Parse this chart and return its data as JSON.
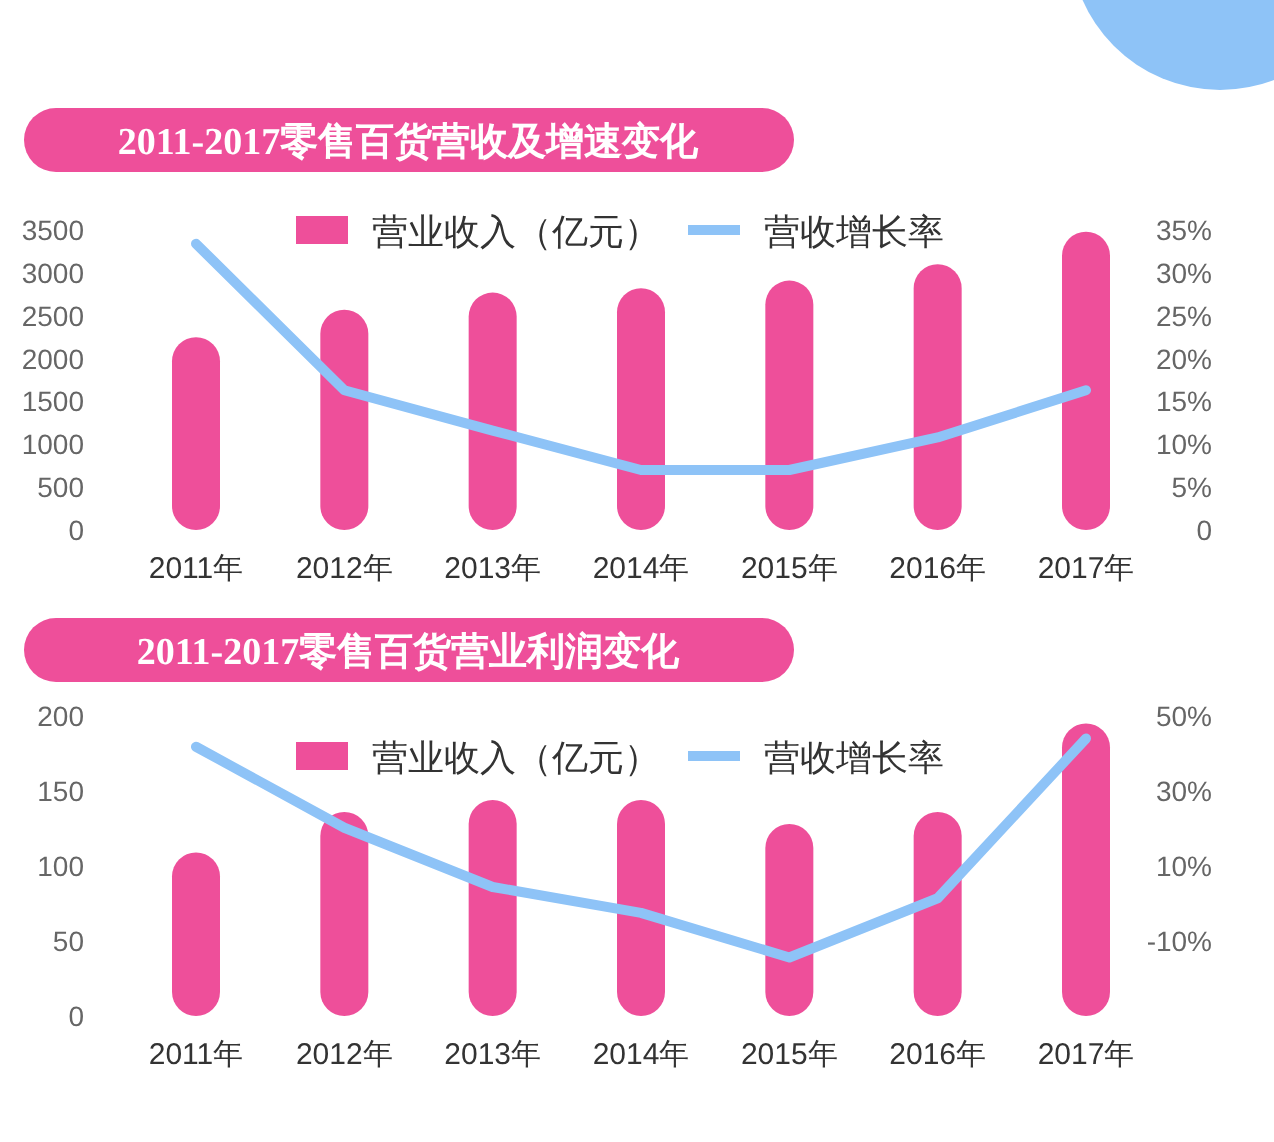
{
  "chart_data": [
    {
      "type": "bar",
      "title": "2011-2017零售百货营收及增速变化",
      "categories": [
        "2011年",
        "2012年",
        "2013年",
        "2014年",
        "2015年",
        "2016年",
        "2017年"
      ],
      "series": [
        {
          "name": "营业收入（亿元）",
          "color": "#ee4f9a",
          "values": [
            2250,
            2570,
            2770,
            2820,
            2910,
            3100,
            3480
          ]
        },
        {
          "name": "营收增长率",
          "type": "line",
          "axis": "y2",
          "color": "#8ec3f7",
          "values": [
            33.4,
            16.3,
            11.6,
            7.0,
            7.0,
            10.8,
            16.3
          ]
        }
      ],
      "ylim": [
        0,
        3500
      ],
      "yticks": [
        0,
        500,
        1000,
        1500,
        2000,
        2500,
        3000,
        3500
      ],
      "y2lim": [
        0,
        35
      ],
      "y2ticks": [
        {
          "value": 0,
          "label": "0"
        },
        {
          "value": 5,
          "label": "5%"
        },
        {
          "value": 10,
          "label": "10%"
        },
        {
          "value": 15,
          "label": "15%"
        },
        {
          "value": 20,
          "label": "20%"
        },
        {
          "value": 25,
          "label": "25%"
        },
        {
          "value": 30,
          "label": "30%"
        },
        {
          "value": 35,
          "label": "35%"
        }
      ],
      "legend": "top",
      "line_style": "solid"
    },
    {
      "type": "bar",
      "title": "2011-2017零售百货营业利润变化",
      "categories": [
        "2011年",
        "2012年",
        "2013年",
        "2014年",
        "2015年",
        "2016年",
        "2017年"
      ],
      "series": [
        {
          "name": "营业收入（亿元）",
          "color": "#ee4f9a",
          "values": [
            109,
            136,
            144,
            144,
            128,
            136,
            195
          ]
        },
        {
          "name": "营收增长率",
          "type": "line",
          "axis": "y2",
          "color": "#8ec3f7",
          "values": [
            41.8,
            20.2,
            4.4,
            -2.5,
            -14.4,
            1.4,
            44
          ]
        }
      ],
      "ylim": [
        0,
        200
      ],
      "yticks": [
        0,
        50,
        100,
        150,
        200
      ],
      "y2lim": [
        -30,
        50
      ],
      "y2ticks": [
        {
          "value": -10,
          "label": "-10%"
        },
        {
          "value": 10,
          "label": "10%"
        },
        {
          "value": 30,
          "label": "30%"
        },
        {
          "value": 50,
          "label": "50%"
        }
      ],
      "legend": "top",
      "line_style": "solid"
    }
  ]
}
